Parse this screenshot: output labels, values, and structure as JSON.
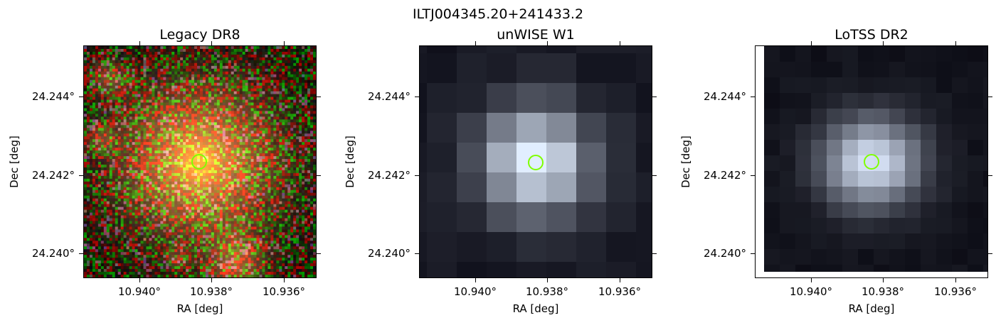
{
  "figure": {
    "suptitle": "ILTJ004345.20+241433.2"
  },
  "panels": [
    {
      "id": "legacy",
      "title": "Legacy DR8",
      "xlabel": "RA [deg]",
      "ylabel": "Dec [deg]",
      "xticks": [
        "10.940°",
        "10.938°",
        "10.936°"
      ],
      "yticks": [
        "24.244°",
        "24.242°",
        "24.240°"
      ],
      "image": "optical color cutout with bright orange galaxy at center, noisy red/green background",
      "marker_color": "#7fff00"
    },
    {
      "id": "unwise",
      "title": "unWISE W1",
      "xlabel": "RA [deg]",
      "ylabel": "Dec [deg]",
      "xticks": [
        "10.940°",
        "10.938°",
        "10.936°"
      ],
      "yticks": [
        "24.244°",
        "24.242°",
        "24.240°"
      ],
      "image": "coarse grayscale infrared pixels with bright source at center",
      "marker_color": "#7fff00"
    },
    {
      "id": "lotss",
      "title": "LoTSS DR2",
      "xlabel": "RA [deg]",
      "ylabel": "Dec [deg]",
      "xticks": [
        "10.940°",
        "10.938°",
        "10.936°"
      ],
      "yticks": [
        "24.244°",
        "24.242°",
        "24.240°"
      ],
      "image": "grayscale radio pixels with bright source at center, white border strips",
      "marker_color": "#7fff00"
    }
  ]
}
